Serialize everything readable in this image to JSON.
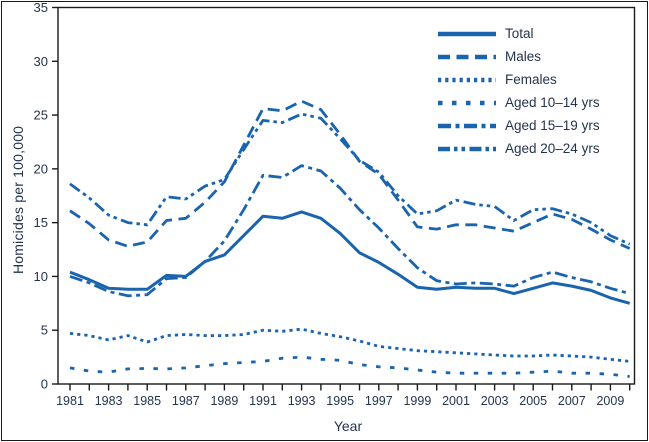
{
  "figure": {
    "y_axis_title": "Homicides per 100,000",
    "x_axis_title": "Year"
  },
  "colors": {
    "line_blue": "#1a64ae",
    "axis_black": "#1a1a1a",
    "text_navy": "#24344e"
  },
  "chart_data": {
    "type": "line",
    "title": "",
    "xlabel": "Year",
    "ylabel": "Homicides per 100,000",
    "ylim": [
      0,
      35
    ],
    "y_ticks": [
      0,
      5,
      10,
      15,
      20,
      25,
      30,
      35
    ],
    "grid": false,
    "legend_position": "top-right-inside",
    "x": [
      1981,
      1982,
      1983,
      1984,
      1985,
      1986,
      1987,
      1988,
      1989,
      1990,
      1991,
      1992,
      1993,
      1994,
      1995,
      1996,
      1997,
      1998,
      1999,
      2000,
      2001,
      2002,
      2003,
      2004,
      2005,
      2006,
      2007,
      2008,
      2009,
      2010
    ],
    "x_tick_labels": [
      1981,
      1983,
      1985,
      1987,
      1989,
      1991,
      1993,
      1995,
      1997,
      1999,
      2001,
      2003,
      2005,
      2007,
      2009
    ],
    "series": [
      {
        "name": "Total",
        "dash": "solid",
        "values": [
          10.4,
          9.7,
          8.9,
          8.8,
          8.8,
          10.1,
          10.0,
          11.4,
          12.0,
          13.8,
          15.6,
          15.4,
          16.0,
          15.4,
          14.0,
          12.2,
          11.3,
          10.2,
          9.0,
          8.8,
          9.0,
          8.9,
          8.9,
          8.4,
          8.9,
          9.4,
          9.1,
          8.7,
          8.0,
          7.5
        ]
      },
      {
        "name": "Males",
        "dash": "dashed",
        "values": [
          16.1,
          14.9,
          13.4,
          12.8,
          13.2,
          15.2,
          15.4,
          16.9,
          18.8,
          22.2,
          25.6,
          25.4,
          26.3,
          25.5,
          23.2,
          20.7,
          19.5,
          17.1,
          14.6,
          14.4,
          14.8,
          14.8,
          14.5,
          14.2,
          15.0,
          15.8,
          15.3,
          14.4,
          13.4,
          12.6
        ]
      },
      {
        "name": "Females",
        "dash": "dotted",
        "values": [
          4.7,
          4.5,
          4.1,
          4.5,
          3.9,
          4.5,
          4.6,
          4.5,
          4.5,
          4.6,
          5.0,
          4.9,
          5.1,
          4.7,
          4.4,
          4.0,
          3.5,
          3.3,
          3.1,
          3.0,
          2.9,
          2.8,
          2.7,
          2.6,
          2.6,
          2.7,
          2.6,
          2.5,
          2.3,
          2.1
        ]
      },
      {
        "name": "Aged 10–14 yrs",
        "dash": "sparse-dotted",
        "values": [
          1.5,
          1.2,
          1.1,
          1.4,
          1.45,
          1.4,
          1.5,
          1.7,
          1.9,
          2.0,
          2.1,
          2.4,
          2.5,
          2.3,
          2.2,
          1.8,
          1.6,
          1.5,
          1.3,
          1.1,
          1.0,
          1.0,
          1.0,
          1.0,
          1.1,
          1.2,
          1.0,
          1.0,
          0.9,
          0.7
        ]
      },
      {
        "name": "Aged 15–19 yrs",
        "dash": "dash-dot",
        "values": [
          10.0,
          9.4,
          8.6,
          8.2,
          8.3,
          9.8,
          9.9,
          11.4,
          13.3,
          16.2,
          19.4,
          19.2,
          20.3,
          19.8,
          18.2,
          16.2,
          14.5,
          12.6,
          10.8,
          9.6,
          9.3,
          9.4,
          9.3,
          9.1,
          9.9,
          10.4,
          9.9,
          9.5,
          8.9,
          8.4
        ]
      },
      {
        "name": "Aged 20–24 yrs",
        "dash": "dash-dot-dot",
        "values": [
          18.6,
          17.3,
          15.7,
          15.0,
          14.8,
          17.4,
          17.2,
          18.4,
          19.0,
          21.8,
          24.5,
          24.3,
          25.1,
          24.7,
          22.8,
          20.8,
          19.7,
          17.5,
          15.8,
          16.1,
          17.1,
          16.7,
          16.5,
          15.2,
          16.2,
          16.3,
          15.8,
          15.0,
          13.8,
          13.0
        ]
      }
    ]
  }
}
